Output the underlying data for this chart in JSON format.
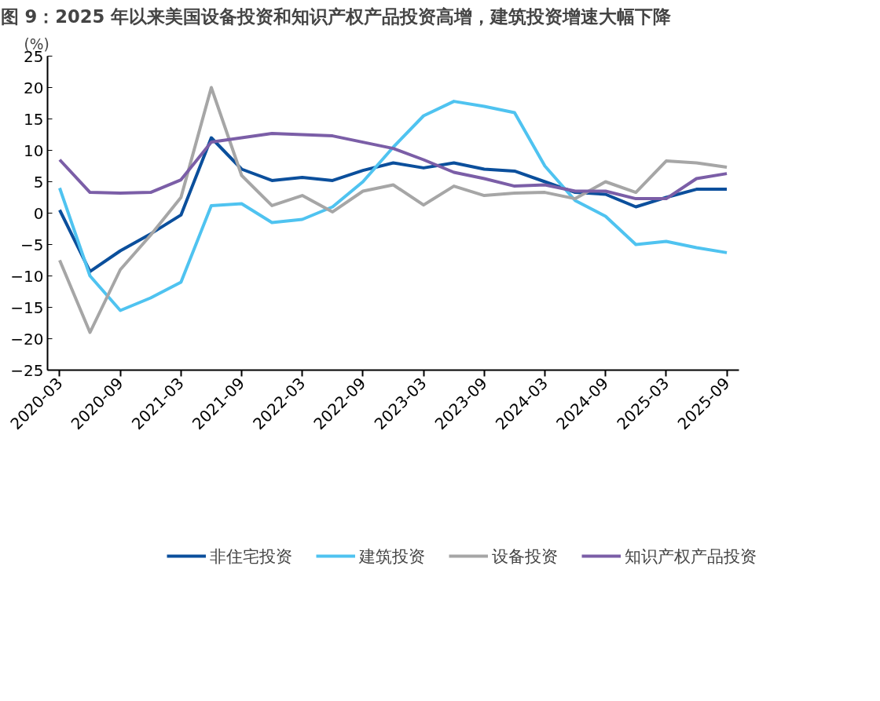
{
  "chart_data": {
    "type": "line",
    "title": "图 9：2025 年以来美国设备投资和知识产权产品投资高增，建筑投资增速大幅下降",
    "ylabel": "(%)",
    "categories": [
      "2020-03",
      null,
      "2020-09",
      null,
      "2021-03",
      null,
      "2021-09",
      null,
      "2022-03",
      null,
      "2022-09",
      null,
      "2023-03",
      null,
      "2023-09",
      null,
      "2024-03",
      null,
      "2024-09",
      null,
      "2025-03",
      null,
      "2025-09"
    ],
    "series": [
      {
        "name": "非住宅投资",
        "color": "#0b4f9c",
        "values": [
          0.5,
          -9.3,
          -6,
          -3.3,
          -0.3,
          12,
          7,
          5.2,
          5.7,
          5.2,
          6.8,
          8,
          7.2,
          8,
          7,
          6.7,
          5,
          3.3,
          3,
          1,
          2.5,
          3.8,
          3.8
        ]
      },
      {
        "name": "建筑投资",
        "color": "#4fc3f0",
        "values": [
          4,
          -10,
          -15.5,
          -13.5,
          -11,
          1.2,
          1.5,
          -1.5,
          -1,
          1,
          5,
          10.5,
          15.5,
          17.8,
          17,
          16,
          7.5,
          2,
          -0.5,
          -5,
          -4.5,
          -5.5,
          -6.3
        ]
      },
      {
        "name": "设备投资",
        "color": "#a6a6a6",
        "values": [
          -7.5,
          -19,
          -9,
          -3.5,
          2.5,
          20,
          6,
          1.2,
          2.8,
          0.2,
          3.5,
          4.5,
          1.3,
          4.3,
          2.8,
          3.2,
          3.3,
          2.3,
          5,
          3.3,
          8.3,
          8,
          7.3
        ]
      },
      {
        "name": "知识产权产品投资",
        "color": "#7b5ea7",
        "values": [
          8.5,
          3.3,
          3.2,
          3.3,
          5.3,
          11.3,
          12,
          12.7,
          12.5,
          12.3,
          11.3,
          10.3,
          8.5,
          6.5,
          5.5,
          4.3,
          4.5,
          3.5,
          3.5,
          2.3,
          2.3,
          5.5,
          6.3
        ]
      }
    ],
    "ylim": [
      -25,
      25
    ],
    "yticks": [
      -25,
      -20,
      -15,
      -10,
      -5,
      0,
      5,
      10,
      15,
      20,
      25
    ],
    "grid": false,
    "legend": "bottom",
    "marker": "none",
    "line_style": "solid"
  }
}
